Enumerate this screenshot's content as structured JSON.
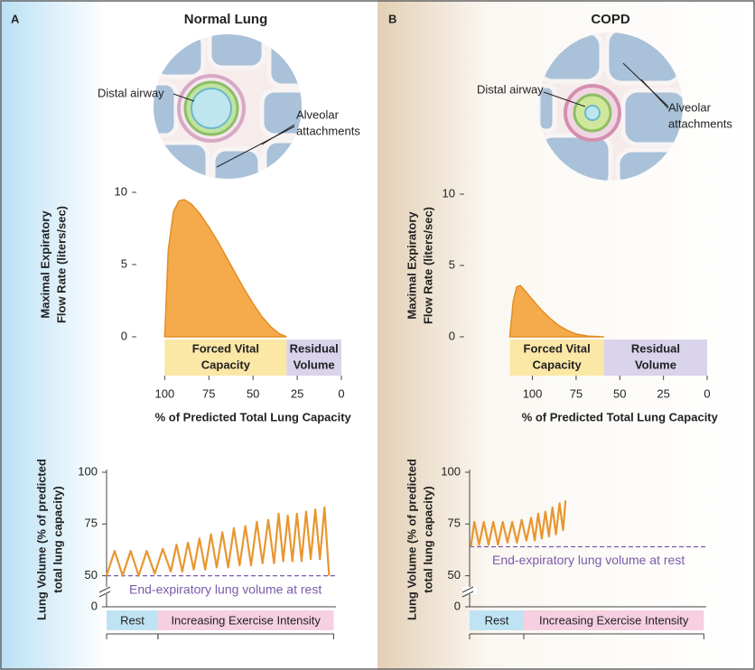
{
  "panels": [
    {
      "letter": "A",
      "title": "Normal Lung",
      "illustration_labels": [
        [
          "Distal airway"
        ],
        [
          "Alveolar",
          "attachments"
        ]
      ]
    },
    {
      "letter": "B",
      "title": "COPD",
      "illustration_labels": [
        [
          "Distal airway"
        ],
        [
          "Alveolar",
          "attachments"
        ]
      ]
    }
  ],
  "chart_data": [
    {
      "type": "area",
      "ylabel": [
        "Maximal Expiratory",
        "Flow Rate (liters/sec)"
      ],
      "xlabel": "% of Predicted Total Lung Capacity",
      "color": "#f5ab4c",
      "x": [
        100,
        98,
        95,
        92,
        89,
        85,
        80,
        75,
        70,
        65,
        60,
        55,
        50,
        45,
        40,
        35,
        31
      ],
      "values": [
        0,
        6,
        8.7,
        9.4,
        9.5,
        9.2,
        8.5,
        7.6,
        6.6,
        5.5,
        4.4,
        3.3,
        2.3,
        1.4,
        0.7,
        0.2,
        0
      ],
      "xlim": [
        114,
        0
      ],
      "xticks": [
        100,
        75,
        50,
        25,
        0
      ],
      "ylim": [
        0,
        10
      ],
      "yticks": [
        0,
        5,
        10
      ],
      "regions": [
        {
          "label": [
            "Forced Vital",
            "Capacity"
          ],
          "from": 100,
          "to": 31,
          "color": "#fbe7a6"
        },
        {
          "label": [
            "Residual",
            "Volume"
          ],
          "from": 31,
          "to": 0,
          "color": "#d9d3ec"
        }
      ]
    },
    {
      "type": "line",
      "ylabel": [
        "Lung Volume (% of predicted",
        "total lung capacity)"
      ],
      "color": "#e9962f",
      "x": [
        0,
        3.5,
        7,
        10.5,
        14,
        17.5,
        21,
        24.5,
        28,
        30.5,
        33,
        35.5,
        38,
        40.5,
        43,
        45.5,
        48,
        50.5,
        53,
        55.5,
        58,
        60.5,
        63,
        65.5,
        68,
        70.5,
        73,
        75,
        77,
        79,
        81,
        83,
        85,
        87,
        89,
        91,
        93,
        95,
        97
      ],
      "values": [
        50,
        62,
        50,
        62,
        50,
        62,
        51,
        63,
        52,
        65,
        52,
        66,
        53,
        68,
        53,
        70,
        54,
        71,
        54,
        73,
        55,
        74,
        55,
        76,
        56,
        77,
        56,
        80,
        57,
        79,
        57,
        80,
        57,
        81,
        58,
        82,
        58,
        83,
        50
      ],
      "xlim": [
        0,
        100
      ],
      "ylim": [
        35,
        100
      ],
      "yticks": [
        0,
        50,
        75,
        100
      ],
      "axis_break": true,
      "reference": {
        "value": 50,
        "label": "End-expiratory lung volume at rest",
        "color": "#7a5aa8"
      },
      "phases": [
        {
          "label": "Rest",
          "from": 0,
          "to": 22.4,
          "color": "#bfe3f3"
        },
        {
          "label": "Increasing Exercise Intensity",
          "from": 22.4,
          "to": 99,
          "color": "#f6cfe0"
        }
      ]
    },
    {
      "type": "area",
      "ylabel": [
        "Maximal Expiratory",
        "Flow Rate (liters/sec)"
      ],
      "xlabel": "% of Predicted Total Lung Capacity",
      "color": "#f5ab4c",
      "x": [
        113,
        111,
        109,
        107,
        104,
        100,
        95,
        90,
        85,
        80,
        75,
        68,
        59
      ],
      "values": [
        0,
        2.5,
        3.5,
        3.6,
        3.2,
        2.6,
        1.9,
        1.3,
        0.8,
        0.45,
        0.2,
        0.05,
        0
      ],
      "xlim": [
        137,
        0
      ],
      "xticks": [
        100,
        75,
        50,
        25,
        0
      ],
      "ylim": [
        0,
        10
      ],
      "yticks": [
        0,
        5,
        10
      ],
      "regions": [
        {
          "label": [
            "Forced Vital",
            "Capacity"
          ],
          "from": 113,
          "to": 59,
          "color": "#fbe7a6"
        },
        {
          "label": [
            "Residual",
            "Volume"
          ],
          "from": 59,
          "to": 0,
          "color": "#d9d3ec"
        }
      ]
    },
    {
      "type": "line",
      "ylabel": [
        "Lung Volume (% of predicted",
        "total lung capacity)"
      ],
      "color": "#e9962f",
      "x": [
        0.5,
        2,
        4,
        6,
        8,
        10,
        12,
        14,
        16,
        18,
        20,
        22,
        24,
        26,
        27.5,
        29,
        30.5,
        32,
        33.5,
        35,
        36.5,
        38,
        39.5,
        40.5,
        40
      ],
      "values": [
        64,
        76,
        65,
        76,
        65,
        76,
        65,
        76,
        66,
        76,
        66,
        77,
        67,
        78,
        67,
        80,
        68,
        81,
        69,
        83,
        70,
        85,
        72,
        86,
        79
      ],
      "xlim": [
        0,
        100
      ],
      "ylim": [
        35,
        100
      ],
      "yticks": [
        0,
        50,
        75,
        100
      ],
      "axis_break": true,
      "reference": {
        "value": 64,
        "label": "End-expiratory lung volume at rest",
        "color": "#7a5aa8"
      },
      "phases": [
        {
          "label": "Rest",
          "from": 0,
          "to": 22.9,
          "color": "#bfe3f3"
        },
        {
          "label": "Increasing Exercise Intensity",
          "from": 22.9,
          "to": 99,
          "color": "#f6cfe0"
        }
      ]
    }
  ]
}
